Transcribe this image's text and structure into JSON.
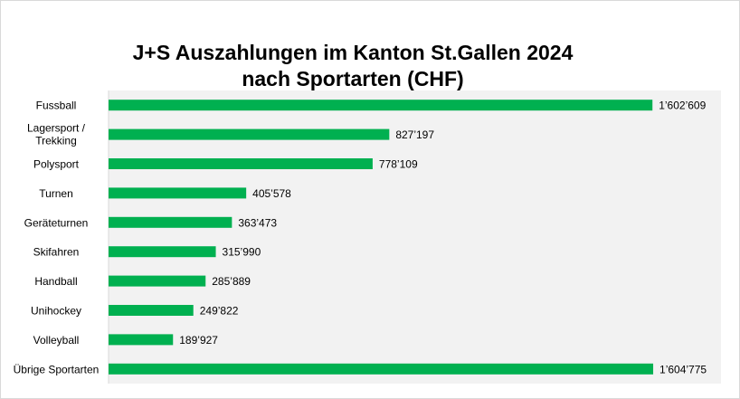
{
  "chart_data": {
    "type": "bar",
    "orientation": "horizontal",
    "title": "J+S Auszahlungen im Kanton St.Gallen 2024",
    "subtitle": "nach Sportarten (CHF)",
    "categories": [
      "Fussball",
      "Lagersport / Trekking",
      "Polysport",
      "Turnen",
      "Geräteturnen",
      "Skifahren",
      "Handball",
      "Unihockey",
      "Volleyball",
      "Übrige Sportarten"
    ],
    "values": [
      1602609,
      827197,
      778109,
      405578,
      363473,
      315990,
      285889,
      249822,
      189927,
      1604775
    ],
    "data_labels": [
      "1’602’609",
      "827’197",
      "778’109",
      "405’578",
      "363’473",
      "315’990",
      "285’889",
      "249’822",
      "189’927",
      "1’604’775"
    ],
    "bar_color": "#00b050",
    "plot_background": "#f2f2f2",
    "xlim": [
      0,
      1610000
    ],
    "grid": false,
    "legend": "none"
  }
}
